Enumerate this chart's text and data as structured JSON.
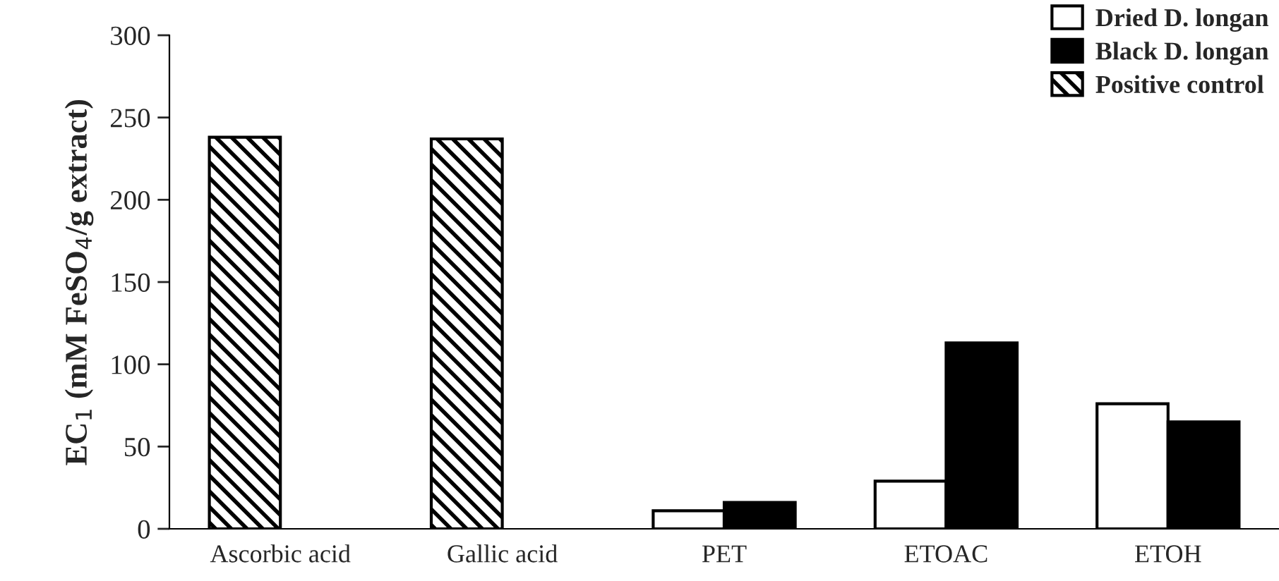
{
  "chart_data": {
    "type": "bar",
    "ylabel": "EC$_{1}$ (mM FeSO$_{4}$/g extract)",
    "categories": [
      "Ascorbic acid",
      "Gallic acid",
      "PET",
      "ETOAC",
      "ETOH"
    ],
    "series": [
      {
        "name": "Dried D. longan",
        "color": "#ffffff",
        "values": [
          null,
          null,
          11,
          29,
          76
        ]
      },
      {
        "name": "Black D. longan",
        "color": "#000000",
        "values": [
          null,
          null,
          16,
          113,
          65
        ]
      },
      {
        "name": "Positive control",
        "color": "#000000",
        "values": [
          238,
          237,
          null,
          null,
          null
        ]
      }
    ],
    "ylim": [
      0,
      300
    ],
    "yticks": [
      0,
      50,
      100,
      150,
      200,
      250,
      300
    ],
    "legend": "top right",
    "grid": false
  }
}
